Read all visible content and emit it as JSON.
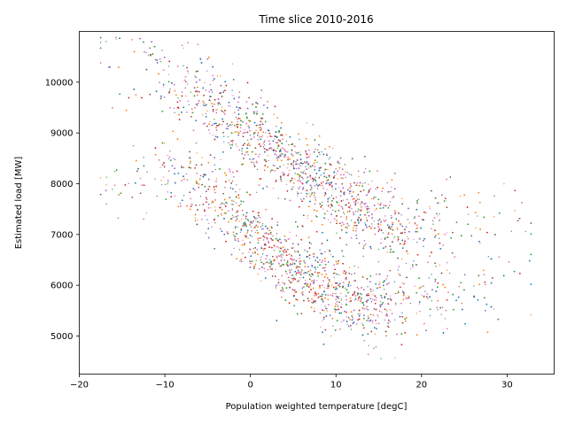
{
  "chart_data": {
    "type": "scatter",
    "title": "Time slice 2010-2016",
    "xlabel": "Population weighted temperature [degC]",
    "ylabel": "Estimated load [MW]",
    "xlim": [
      -20,
      35.5
    ],
    "ylim": [
      4250,
      11000
    ],
    "xticks": [
      -20,
      -10,
      0,
      10,
      20,
      30
    ],
    "yticks": [
      5000,
      6000,
      7000,
      8000,
      9000,
      10000
    ],
    "grid": false,
    "legend": "none",
    "series_colors": [
      "#1f77b4",
      "#ff7f0e",
      "#2ca02c",
      "#d62728",
      "#9467bd",
      "#8c564b",
      "#e377c2"
    ],
    "branches": [
      {
        "temperature": [
          -17,
          -12,
          -8,
          -5,
          -2,
          0,
          3,
          6,
          10,
          14,
          18,
          22,
          26,
          30,
          32
        ],
        "load": [
          10300,
          10400,
          9900,
          9600,
          9300,
          9000,
          8600,
          8200,
          7800,
          7400,
          7200,
          7100,
          7200,
          7400,
          7500
        ]
      },
      {
        "temperature": [
          -17,
          -12,
          -8,
          -5,
          -2,
          0,
          3,
          6,
          10,
          14,
          18,
          22,
          26,
          30
        ],
        "load": [
          8000,
          8200,
          8000,
          7700,
          7400,
          7000,
          6600,
          6200,
          5800,
          5600,
          5700,
          5800,
          5900,
          6000
        ]
      }
    ]
  }
}
